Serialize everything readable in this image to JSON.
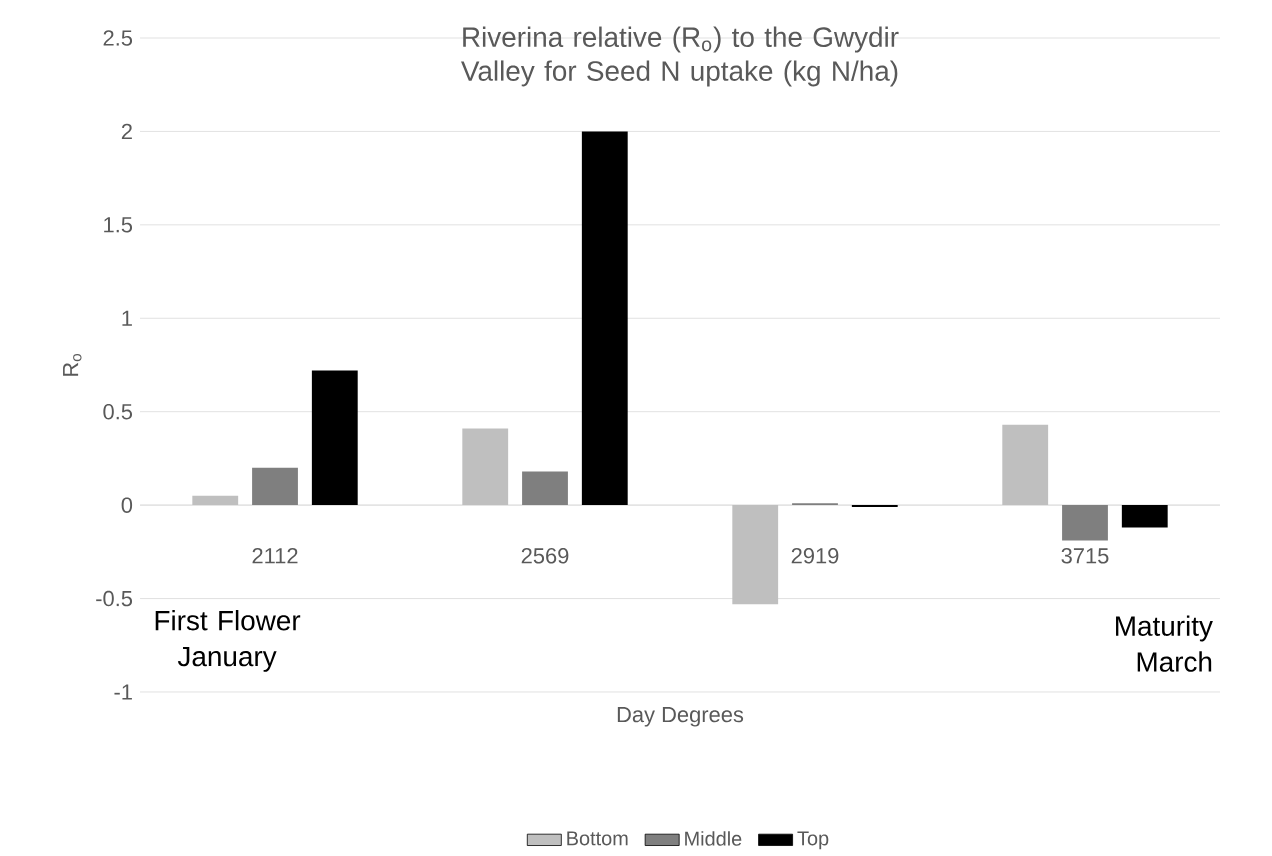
{
  "chart_data": {
    "type": "bar",
    "title": "Riverina relative (R$_{o}$) to the Gwydir Valley for Seed N uptake (kg N/ha)",
    "xlabel": "Day Degrees",
    "ylabel": "R$_{o}$",
    "categories": [
      "2112",
      "2569",
      "2919",
      "3715"
    ],
    "series": [
      {
        "name": "Bottom",
        "color": "#bfbfbf",
        "values": [
          0.05,
          0.41,
          -0.53,
          0.43
        ]
      },
      {
        "name": "Middle",
        "color": "#7f7f7f",
        "values": [
          0.2,
          0.18,
          0.01,
          -0.19
        ]
      },
      {
        "name": "Top",
        "color": "#000000",
        "values": [
          0.72,
          2.0,
          -0.01,
          -0.12
        ]
      }
    ],
    "ylim": [
      -1,
      2.5
    ],
    "yticks": [
      -1,
      -0.5,
      0,
      0.5,
      1,
      1.5,
      2,
      2.5
    ],
    "grid": "y",
    "legend": "bottom",
    "annotations": [
      "First Flower January",
      "Maturity March"
    ]
  }
}
